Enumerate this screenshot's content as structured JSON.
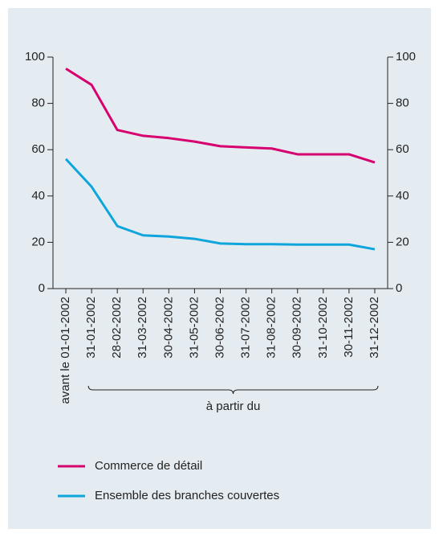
{
  "chart_data": {
    "type": "line",
    "categories": [
      "avant le 01-01-2002",
      "31-01-2002",
      "28-02-2002",
      "31-03-2002",
      "30-04-2002",
      "31-05-2002",
      "30-06-2002",
      "31-07-2002",
      "31-08-2002",
      "30-09-2002",
      "31-10-2002",
      "30-11-2002",
      "31-12-2002"
    ],
    "series": [
      {
        "name": "Commerce de détail",
        "color": "#d6006f",
        "values": [
          95,
          88,
          68.5,
          66,
          65,
          63.5,
          61.5,
          61,
          60.5,
          58,
          58,
          58,
          54.5
        ]
      },
      {
        "name": "Ensemble des branches couvertes",
        "color": "#0ea5dc",
        "values": [
          56,
          44,
          27,
          23,
          22.5,
          21.5,
          19.5,
          19.2,
          19.2,
          19,
          19,
          19,
          17
        ]
      }
    ],
    "annotation": "à partir du",
    "ylim": [
      0,
      100
    ],
    "yticks": [
      0,
      20,
      40,
      60,
      80,
      100
    ],
    "y2lim": [
      0,
      100
    ],
    "y2ticks": [
      0,
      20,
      40,
      60,
      80,
      100
    ],
    "grid": false
  }
}
